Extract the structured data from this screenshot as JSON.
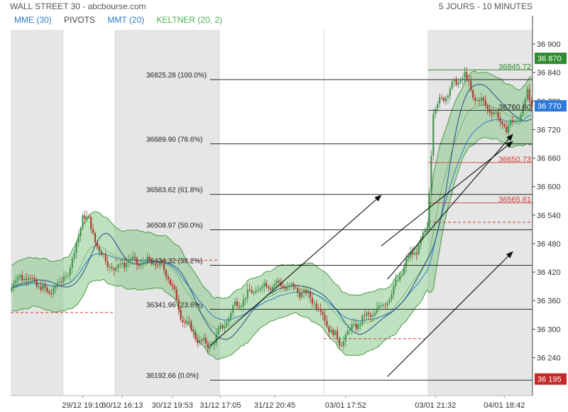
{
  "header": {
    "title": "WALL STREET 30 - abcbourse.com",
    "period": "5 JOURS - 10 MINUTES"
  },
  "legend": [
    {
      "label": "MME (30)",
      "color": "#2e7bc4"
    },
    {
      "label": "PIVOTS",
      "color": "#444444"
    },
    {
      "label": "MMT (20)",
      "color": "#2e7bc4"
    },
    {
      "label": "KELTNER (20, 2)",
      "color": "#4caf50"
    }
  ],
  "colors": {
    "up": "#3f8f4a",
    "down": "#a9342a",
    "keltner_fill": "#8cc98c",
    "keltner_line": "#4a9a4a",
    "mme": "#2e7bc4",
    "mmt": "#1c4f86",
    "shade": "#e6e6e6",
    "pivot_red": "#d33a3a",
    "current_badge": "#2f7ad8",
    "high_badge": "#2e8b2e",
    "low_badge": "#c62828"
  },
  "chart_data": {
    "type": "candlestick",
    "title": "WALL STREET 30",
    "ylim": [
      36160,
      36930
    ],
    "yticks": [
      36240,
      36300,
      36360,
      36420,
      36480,
      36540,
      36600,
      36660,
      36720,
      36780,
      36840,
      36900
    ],
    "ytick_labels": [
      "36 240",
      "36 300",
      "36 360",
      "36 420",
      "36 480",
      "36 540",
      "36 600",
      "36 660",
      "36 720",
      "36 780",
      "36 840",
      "36 900"
    ],
    "xtick_labels": [
      "29/12 19:10",
      "30/12 16:13",
      "30/12 19:53",
      "31/12 17:05",
      "31/12 20:45",
      "03/01 17:52",
      "03/01 21:32",
      "04/01 18:42"
    ],
    "n_bars": 250,
    "session_breaks": [
      25,
      50,
      100,
      150,
      200
    ],
    "shaded_sessions": [
      [
        0,
        25
      ],
      [
        50,
        100
      ],
      [
        200,
        250
      ]
    ],
    "path_anchors": [
      [
        0,
        36380
      ],
      [
        5,
        36415
      ],
      [
        12,
        36400
      ],
      [
        18,
        36375
      ],
      [
        25,
        36400
      ],
      [
        30,
        36440
      ],
      [
        35,
        36540
      ],
      [
        38,
        36525
      ],
      [
        44,
        36455
      ],
      [
        50,
        36425
      ],
      [
        56,
        36445
      ],
      [
        62,
        36440
      ],
      [
        70,
        36440
      ],
      [
        76,
        36415
      ],
      [
        82,
        36330
      ],
      [
        88,
        36290
      ],
      [
        95,
        36262
      ],
      [
        100,
        36290
      ],
      [
        108,
        36350
      ],
      [
        116,
        36378
      ],
      [
        124,
        36395
      ],
      [
        132,
        36392
      ],
      [
        140,
        36378
      ],
      [
        146,
        36360
      ],
      [
        152,
        36312
      ],
      [
        158,
        36270
      ],
      [
        162,
        36292
      ],
      [
        168,
        36318
      ],
      [
        176,
        36338
      ],
      [
        183,
        36375
      ],
      [
        190,
        36442
      ],
      [
        196,
        36475
      ],
      [
        200,
        36510
      ],
      [
        203,
        36760
      ],
      [
        208,
        36790
      ],
      [
        214,
        36820
      ],
      [
        218,
        36835
      ],
      [
        222,
        36790
      ],
      [
        230,
        36765
      ],
      [
        238,
        36722
      ],
      [
        244,
        36745
      ],
      [
        248,
        36795
      ],
      [
        250,
        36770
      ]
    ],
    "fibonacci": [
      {
        "value": 36825.28,
        "label": "36825.28  (100.0%)"
      },
      {
        "value": 36689.9,
        "label": "36689.90  (78.6%)"
      },
      {
        "value": 36583.62,
        "label": "36583.62  (61.8%)"
      },
      {
        "value": 36508.97,
        "label": "36508.97  (50.0%)"
      },
      {
        "value": 36434.32,
        "label": "36434.32  (38.2%)"
      },
      {
        "value": 36341.96,
        "label": "36341.96  (23.6%)"
      },
      {
        "value": 36192.66,
        "label": "36192.66  (0.0%)"
      }
    ],
    "pivot_dashed": [
      {
        "value": 36335,
        "from": 0,
        "to": 50
      },
      {
        "value": 36445,
        "from": 50,
        "to": 100
      },
      {
        "value": 36280,
        "from": 150,
        "to": 200
      },
      {
        "value": 36525,
        "from": 200,
        "to": 250
      }
    ],
    "horizontal_markers": [
      {
        "value": 36845.72,
        "label": "36845.72",
        "color": "#2e8b2e",
        "from": 200
      },
      {
        "value": 36760.6,
        "label": "36760.60",
        "color": "#222222",
        "from": 200
      },
      {
        "value": 36650.73,
        "label": "36650.73",
        "color": "#d33a3a",
        "from": 200
      },
      {
        "value": 36565.61,
        "label": "36565.61",
        "color": "#d33a3a",
        "from": 200
      }
    ],
    "badges": [
      {
        "value": 36870,
        "label": "36 870",
        "type": "high"
      },
      {
        "value": 36770,
        "label": "36 770",
        "type": "current"
      },
      {
        "value": 36195,
        "label": "36 195",
        "type": "low"
      }
    ],
    "trendlines": [
      {
        "from": [
          95,
          36265
        ],
        "to": [
          177,
          36582
        ]
      },
      {
        "from": [
          177,
          36475
        ],
        "to": [
          240,
          36695
        ]
      },
      {
        "from": [
          180,
          36405
        ],
        "to": [
          240,
          36710
        ]
      },
      {
        "from": [
          180,
          36200
        ],
        "to": [
          240,
          36463
        ]
      }
    ]
  }
}
